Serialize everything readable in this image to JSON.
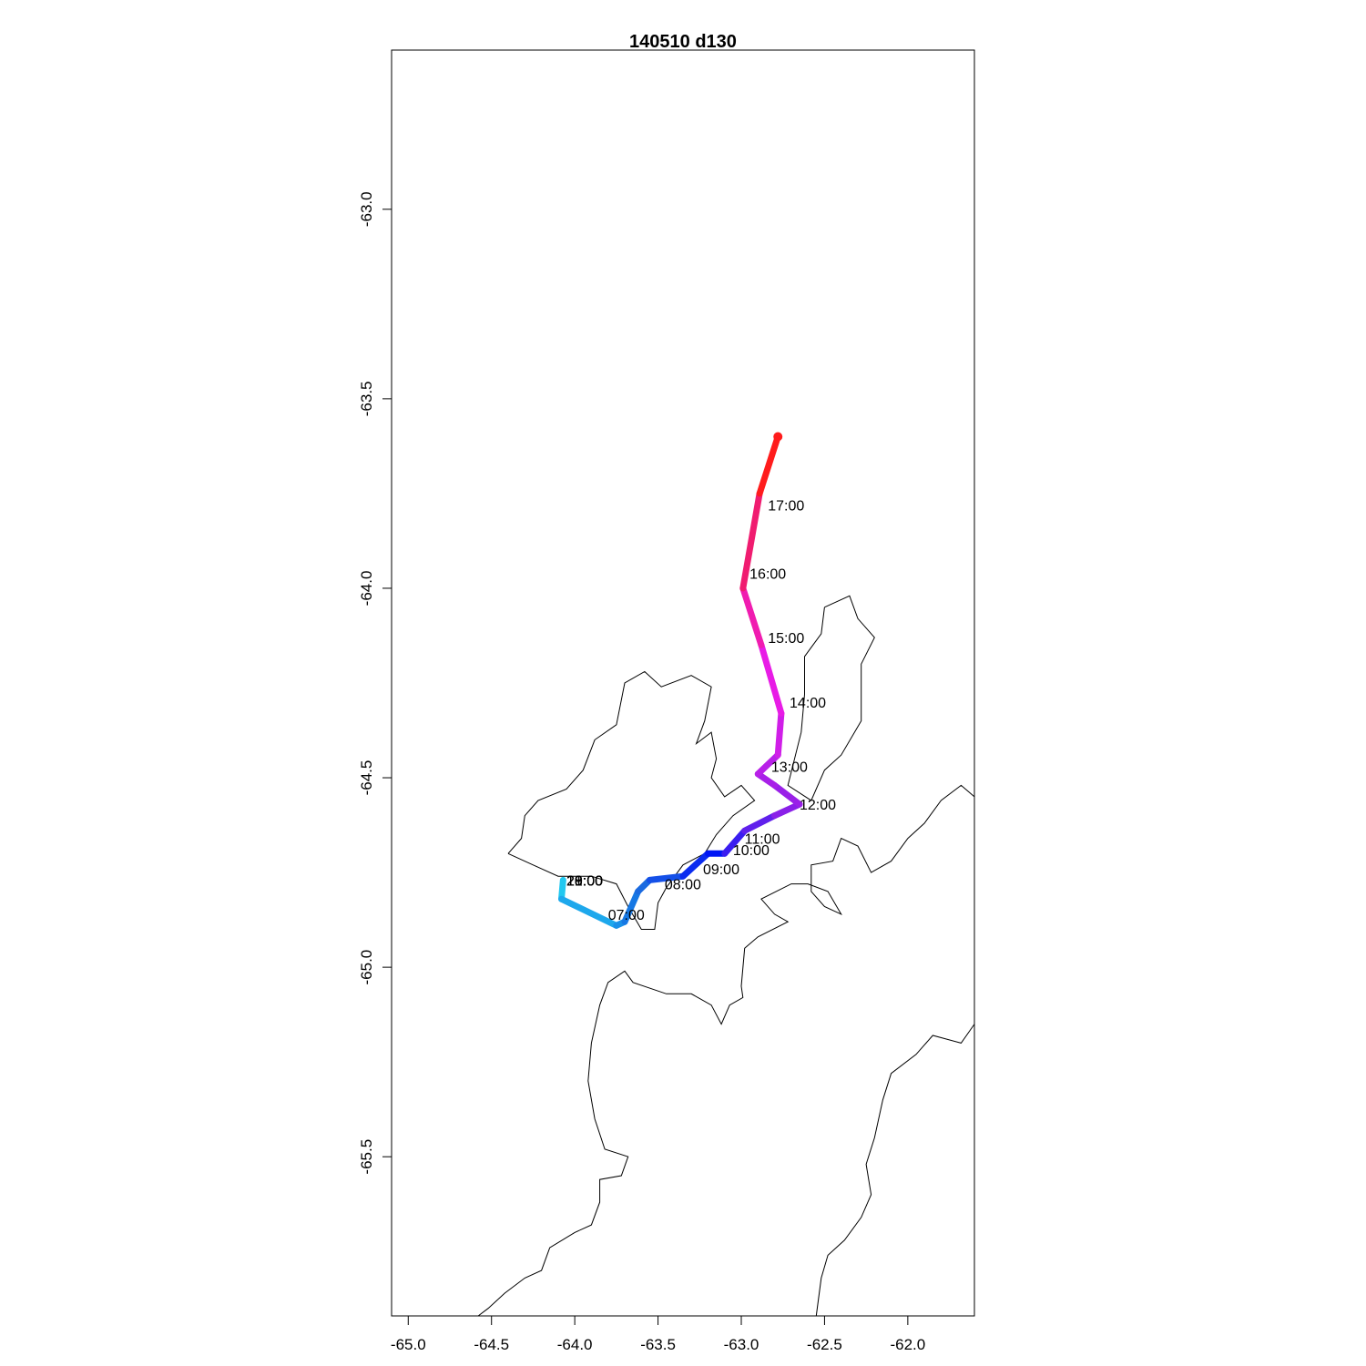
{
  "title": "140510   d130",
  "chart_data": {
    "type": "map-track",
    "title": "140510   d130",
    "xlim": [
      -65.1,
      -61.6
    ],
    "ylim": [
      -65.92,
      -62.58
    ],
    "x_ticks": [
      "-65.0",
      "-64.5",
      "-64.0",
      "-63.5",
      "-63.0",
      "-62.5",
      "-62.0"
    ],
    "x_tick_values": [
      -65.0,
      -64.5,
      -64.0,
      -63.5,
      -63.0,
      -62.5,
      -62.0
    ],
    "y_ticks": [
      "-63.0",
      "-63.5",
      "-64.0",
      "-64.5",
      "-65.0",
      "-65.5"
    ],
    "y_tick_values": [
      -63.0,
      -63.5,
      -64.0,
      -64.5,
      -65.0,
      -65.5
    ],
    "track": [
      {
        "lon": -64.07,
        "lat": -64.77,
        "color": "#00e5ee"
      },
      {
        "lon": -64.08,
        "lat": -64.82,
        "color": "#22c8f0"
      },
      {
        "lon": -63.75,
        "lat": -64.89,
        "color": "#1ea8ec"
      },
      {
        "lon": -63.7,
        "lat": -64.88,
        "color": "#1a90e8"
      },
      {
        "lon": -63.62,
        "lat": -64.8,
        "color": "#1678e4"
      },
      {
        "lon": -63.55,
        "lat": -64.77,
        "color": "#1a6ae0"
      },
      {
        "lon": -63.35,
        "lat": -64.76,
        "color": "#1450e8"
      },
      {
        "lon": -63.2,
        "lat": -64.7,
        "color": "#0b2cf0"
      },
      {
        "lon": -63.1,
        "lat": -64.7,
        "color": "#0016f5"
      },
      {
        "lon": -62.98,
        "lat": -64.64,
        "color": "#3a1df0"
      },
      {
        "lon": -62.8,
        "lat": -64.6,
        "color": "#6020ec"
      },
      {
        "lon": -62.65,
        "lat": -64.57,
        "color": "#8a20e8"
      },
      {
        "lon": -62.8,
        "lat": -64.52,
        "color": "#9a20e8"
      },
      {
        "lon": -62.9,
        "lat": -64.49,
        "color": "#a820e8"
      },
      {
        "lon": -62.78,
        "lat": -64.44,
        "color": "#b820e8"
      },
      {
        "lon": -62.76,
        "lat": -64.33,
        "color": "#d01ee8"
      },
      {
        "lon": -62.88,
        "lat": -64.15,
        "color": "#e81ce6"
      },
      {
        "lon": -62.99,
        "lat": -64.0,
        "color": "#f01cb0"
      },
      {
        "lon": -62.89,
        "lat": -63.75,
        "color": "#f01c70"
      },
      {
        "lon": -62.78,
        "lat": -63.6,
        "color": "#ff1c1c"
      }
    ],
    "time_labels": [
      {
        "text": "07:00",
        "lon": -63.8,
        "lat": -64.86
      },
      {
        "text": "08:00",
        "lon": -63.46,
        "lat": -64.78
      },
      {
        "text": "09:00",
        "lon": -63.23,
        "lat": -64.74
      },
      {
        "text": "10:00",
        "lon": -63.05,
        "lat": -64.69
      },
      {
        "text": "11:00",
        "lon": -62.98,
        "lat": -64.66
      },
      {
        "text": "12:00",
        "lon": -62.65,
        "lat": -64.57
      },
      {
        "text": "13:00",
        "lon": -62.82,
        "lat": -64.47
      },
      {
        "text": "14:00",
        "lon": -62.71,
        "lat": -64.3
      },
      {
        "text": "15:00",
        "lon": -62.84,
        "lat": -64.13
      },
      {
        "text": "16:00",
        "lon": -62.95,
        "lat": -63.96
      },
      {
        "text": "17:00",
        "lon": -62.84,
        "lat": -63.78
      },
      {
        "text": "18:00",
        "lon": -64.05,
        "lat": -64.77
      },
      {
        "text": "19:00",
        "lon": -64.05,
        "lat": -64.77
      },
      {
        "text": "20:00",
        "lon": -64.05,
        "lat": -64.77
      },
      {
        "text": "21:00",
        "lon": -64.05,
        "lat": -64.77
      }
    ],
    "coastlines": [
      [
        [
          -64.4,
          -64.7
        ],
        [
          -64.32,
          -64.66
        ],
        [
          -64.3,
          -64.6
        ],
        [
          -64.22,
          -64.56
        ],
        [
          -64.05,
          -64.53
        ],
        [
          -63.95,
          -64.48
        ],
        [
          -63.88,
          -64.4
        ],
        [
          -63.75,
          -64.36
        ],
        [
          -63.7,
          -64.25
        ],
        [
          -63.58,
          -64.22
        ],
        [
          -63.48,
          -64.26
        ],
        [
          -63.3,
          -64.23
        ],
        [
          -63.18,
          -64.26
        ],
        [
          -63.22,
          -64.35
        ],
        [
          -63.27,
          -64.41
        ],
        [
          -63.18,
          -64.38
        ],
        [
          -63.15,
          -64.45
        ],
        [
          -63.18,
          -64.5
        ],
        [
          -63.1,
          -64.55
        ],
        [
          -63.0,
          -64.52
        ],
        [
          -62.92,
          -64.56
        ],
        [
          -63.05,
          -64.6
        ],
        [
          -63.15,
          -64.65
        ],
        [
          -63.22,
          -64.7
        ],
        [
          -63.35,
          -64.73
        ],
        [
          -63.45,
          -64.79
        ],
        [
          -63.5,
          -64.83
        ],
        [
          -63.52,
          -64.9
        ],
        [
          -63.6,
          -64.9
        ],
        [
          -63.68,
          -64.84
        ],
        [
          -63.75,
          -64.78
        ],
        [
          -63.9,
          -64.76
        ],
        [
          -64.1,
          -64.76
        ],
        [
          -64.25,
          -64.73
        ],
        [
          -64.4,
          -64.7
        ]
      ],
      [
        [
          -62.5,
          -64.05
        ],
        [
          -62.35,
          -64.02
        ],
        [
          -62.3,
          -64.08
        ],
        [
          -62.2,
          -64.13
        ],
        [
          -62.28,
          -64.2
        ],
        [
          -62.28,
          -64.35
        ],
        [
          -62.4,
          -64.44
        ],
        [
          -62.5,
          -64.48
        ],
        [
          -62.58,
          -64.56
        ],
        [
          -62.72,
          -64.52
        ],
        [
          -62.64,
          -64.38
        ],
        [
          -62.62,
          -64.28
        ],
        [
          -62.62,
          -64.18
        ],
        [
          -62.52,
          -64.12
        ],
        [
          -62.5,
          -64.05
        ]
      ],
      [
        [
          -61.6,
          -64.55
        ],
        [
          -61.68,
          -64.52
        ],
        [
          -61.8,
          -64.56
        ],
        [
          -61.9,
          -64.62
        ],
        [
          -62.0,
          -64.66
        ],
        [
          -62.1,
          -64.72
        ],
        [
          -62.22,
          -64.75
        ],
        [
          -62.3,
          -64.68
        ],
        [
          -62.4,
          -64.66
        ],
        [
          -62.45,
          -64.72
        ],
        [
          -62.58,
          -64.73
        ],
        [
          -62.58,
          -64.8
        ],
        [
          -62.5,
          -64.84
        ],
        [
          -62.4,
          -64.86
        ],
        [
          -62.48,
          -64.8
        ],
        [
          -62.6,
          -64.78
        ],
        [
          -62.7,
          -64.78
        ],
        [
          -62.88,
          -64.82
        ],
        [
          -62.8,
          -64.86
        ],
        [
          -62.72,
          -64.88
        ],
        [
          -62.9,
          -64.92
        ],
        [
          -62.98,
          -64.95
        ],
        [
          -63.0,
          -65.05
        ],
        [
          -62.99,
          -65.08
        ],
        [
          -63.07,
          -65.1
        ],
        [
          -63.12,
          -65.15
        ],
        [
          -63.18,
          -65.1
        ],
        [
          -63.3,
          -65.07
        ],
        [
          -63.45,
          -65.07
        ],
        [
          -63.65,
          -65.04
        ],
        [
          -63.7,
          -65.01
        ],
        [
          -63.8,
          -65.04
        ],
        [
          -63.85,
          -65.1
        ],
        [
          -63.9,
          -65.2
        ],
        [
          -63.92,
          -65.3
        ],
        [
          -63.88,
          -65.4
        ],
        [
          -63.82,
          -65.48
        ],
        [
          -63.68,
          -65.5
        ],
        [
          -63.72,
          -65.55
        ],
        [
          -63.85,
          -65.56
        ],
        [
          -63.85,
          -65.62
        ],
        [
          -63.9,
          -65.68
        ],
        [
          -64.0,
          -65.7
        ],
        [
          -64.15,
          -65.74
        ],
        [
          -64.2,
          -65.8
        ],
        [
          -64.3,
          -65.82
        ],
        [
          -64.42,
          -65.86
        ],
        [
          -64.52,
          -65.9
        ],
        [
          -64.58,
          -65.92
        ]
      ],
      [
        [
          -61.6,
          -65.15
        ],
        [
          -61.68,
          -65.2
        ],
        [
          -61.85,
          -65.18
        ],
        [
          -61.95,
          -65.23
        ],
        [
          -62.1,
          -65.28
        ],
        [
          -62.15,
          -65.35
        ],
        [
          -62.2,
          -65.45
        ],
        [
          -62.25,
          -65.52
        ],
        [
          -62.22,
          -65.6
        ],
        [
          -62.28,
          -65.66
        ],
        [
          -62.38,
          -65.72
        ],
        [
          -62.48,
          -65.76
        ],
        [
          -62.52,
          -65.82
        ],
        [
          -62.55,
          -65.92
        ]
      ]
    ]
  }
}
